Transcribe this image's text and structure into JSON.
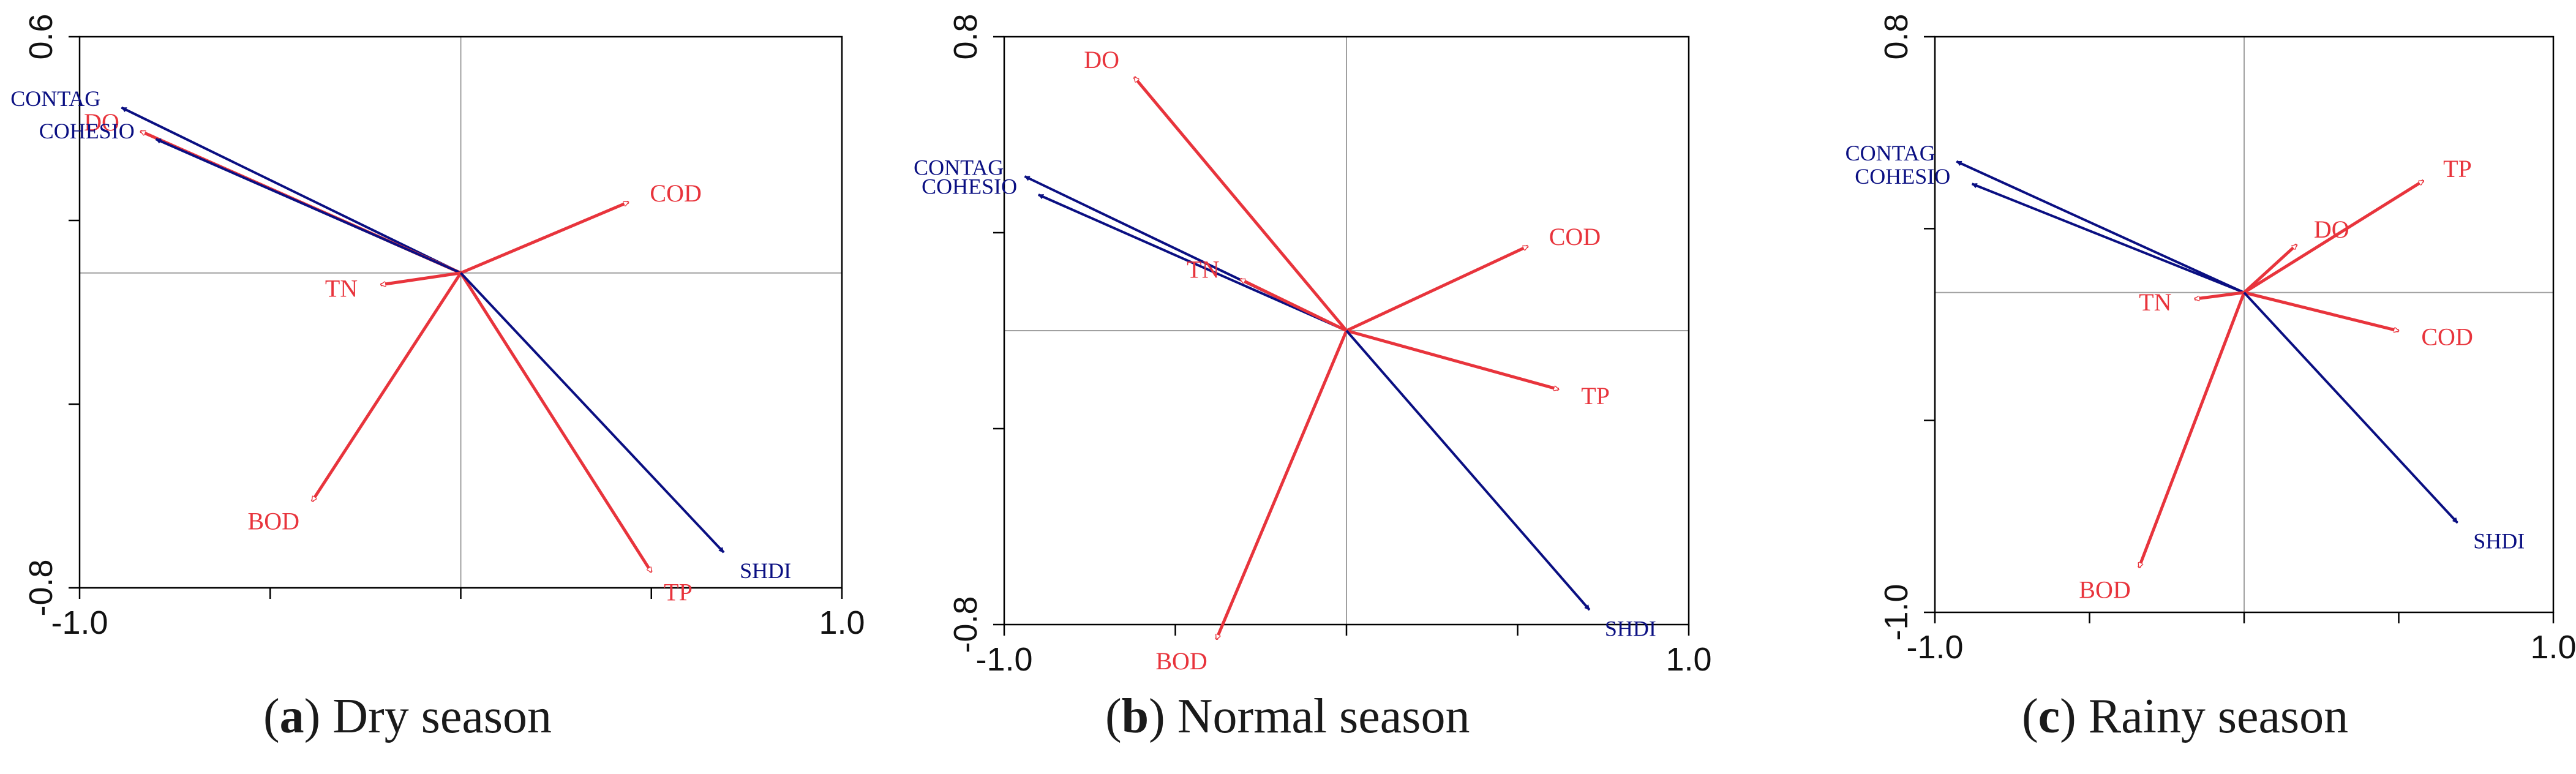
{
  "colors": {
    "environment": "#e8343c",
    "landscape": "#0a0f82",
    "axis_ref": "#a0a0a0",
    "frame": "#000000"
  },
  "chart_data": [
    {
      "type": "biplot",
      "caption": {
        "letter": "a",
        "text": "Dry season"
      },
      "xlim": [
        -1.0,
        1.0
      ],
      "ylim": [
        -0.8,
        0.6
      ],
      "x_tick_labels": [
        "-1.0",
        "1.0"
      ],
      "y_tick_labels": [
        "0.6",
        "-0.8"
      ],
      "vectors": [
        {
          "label": "CONTAG",
          "group": "landscape",
          "x": -0.89,
          "y": 0.42
        },
        {
          "label": "DO",
          "group": "environment",
          "x": -0.84,
          "y": 0.36
        },
        {
          "label": "COHESIO",
          "group": "landscape",
          "x": -0.8,
          "y": 0.34
        },
        {
          "label": "COD",
          "group": "environment",
          "x": 0.44,
          "y": 0.18
        },
        {
          "label": "TN",
          "group": "environment",
          "x": -0.21,
          "y": -0.03
        },
        {
          "label": "BOD",
          "group": "environment",
          "x": -0.39,
          "y": -0.58
        },
        {
          "label": "TP",
          "group": "environment",
          "x": 0.5,
          "y": -0.76
        },
        {
          "label": "SHDI",
          "group": "landscape",
          "x": 0.69,
          "y": -0.71
        }
      ]
    },
    {
      "type": "biplot",
      "caption": {
        "letter": "b",
        "text": "Normal season"
      },
      "xlim": [
        -1.0,
        1.0
      ],
      "ylim": [
        -0.8,
        0.8
      ],
      "x_tick_labels": [
        "-1.0",
        "1.0"
      ],
      "y_tick_labels": [
        "0.8",
        "-0.8"
      ],
      "vectors": [
        {
          "label": "DO",
          "group": "environment",
          "x": -0.62,
          "y": 0.69
        },
        {
          "label": "CONTAG",
          "group": "landscape",
          "x": -0.94,
          "y": 0.42
        },
        {
          "label": "COHESIO",
          "group": "landscape",
          "x": -0.9,
          "y": 0.37
        },
        {
          "label": "TN",
          "group": "environment",
          "x": -0.31,
          "y": 0.14
        },
        {
          "label": "COD",
          "group": "environment",
          "x": 0.53,
          "y": 0.23
        },
        {
          "label": "TP",
          "group": "environment",
          "x": 0.62,
          "y": -0.16
        },
        {
          "label": "BOD",
          "group": "environment",
          "x": -0.38,
          "y": -0.84
        },
        {
          "label": "SHDI",
          "group": "landscape",
          "x": 0.71,
          "y": -0.76
        }
      ]
    },
    {
      "type": "biplot",
      "caption": {
        "letter": "c",
        "text": "Rainy season"
      },
      "xlim": [
        -1.0,
        1.0
      ],
      "ylim": [
        -1.0,
        0.8
      ],
      "x_tick_labels": [
        "-1.0",
        "1.0"
      ],
      "y_tick_labels": [
        "0.8",
        "-1.0"
      ],
      "vectors": [
        {
          "label": "CONTAG",
          "group": "landscape",
          "x": -0.93,
          "y": 0.41
        },
        {
          "label": "COHESIO",
          "group": "landscape",
          "x": -0.88,
          "y": 0.34
        },
        {
          "label": "TP",
          "group": "environment",
          "x": 0.58,
          "y": 0.35
        },
        {
          "label": "DO",
          "group": "environment",
          "x": 0.17,
          "y": 0.15
        },
        {
          "label": "TN",
          "group": "environment",
          "x": -0.16,
          "y": -0.02
        },
        {
          "label": "COD",
          "group": "environment",
          "x": 0.5,
          "y": -0.12
        },
        {
          "label": "BOD",
          "group": "environment",
          "x": -0.34,
          "y": -0.86
        },
        {
          "label": "SHDI",
          "group": "landscape",
          "x": 0.69,
          "y": -0.72
        }
      ]
    }
  ]
}
